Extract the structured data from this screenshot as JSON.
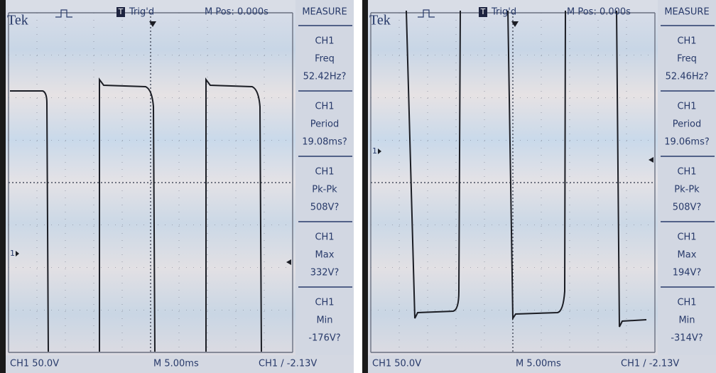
{
  "screens": [
    {
      "header": {
        "brand": "Tek",
        "trigger_icon": "T",
        "trigger": "Trig'd",
        "position": "M Pos: 0.000s"
      },
      "menu_title": "MEASURE",
      "measurements": [
        {
          "channel": "CH1",
          "name": "Freq",
          "value": "52.42Hz?"
        },
        {
          "channel": "CH1",
          "name": "Period",
          "value": "19.08ms?"
        },
        {
          "channel": "CH1",
          "name": "Pk-Pk",
          "value": "508V?"
        },
        {
          "channel": "CH1",
          "name": "Max",
          "value": "332V?"
        },
        {
          "channel": "CH1",
          "name": "Min",
          "value": "-176V?"
        }
      ],
      "channel_marker": "1",
      "footer": {
        "channel_scale": "CH1  50.0V",
        "timebase": "M 5.00ms",
        "trigger": "CH1 / -2.13V"
      }
    },
    {
      "header": {
        "brand": "Tek",
        "trigger_icon": "T",
        "trigger": "Trig'd",
        "position": "M Pos: 0.000s"
      },
      "menu_title": "MEASURE",
      "measurements": [
        {
          "channel": "CH1",
          "name": "Freq",
          "value": "52.46Hz?"
        },
        {
          "channel": "CH1",
          "name": "Period",
          "value": "19.06ms?"
        },
        {
          "channel": "CH1",
          "name": "Pk-Pk",
          "value": "508V?"
        },
        {
          "channel": "CH1",
          "name": "Max",
          "value": "194V?"
        },
        {
          "channel": "CH1",
          "name": "Min",
          "value": "-314V?"
        }
      ],
      "channel_marker": "1",
      "footer": {
        "channel_scale": "CH1  50.0V",
        "timebase": "M 5.00ms",
        "trigger": "CH1 / -2.13V"
      }
    }
  ]
}
